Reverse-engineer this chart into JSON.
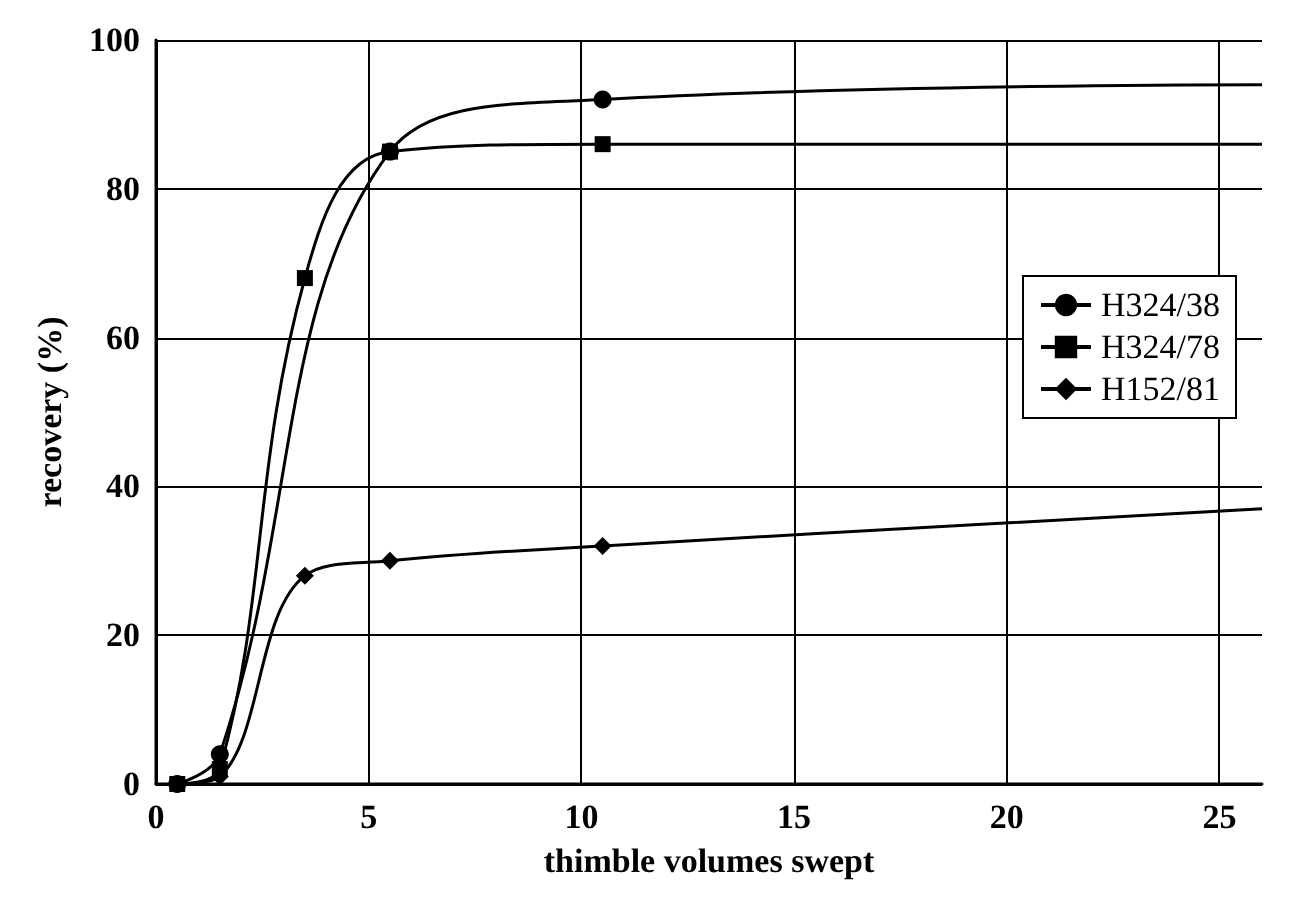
{
  "chart_data": {
    "type": "line",
    "xlabel": "thimble volumes swept",
    "ylabel": "recovery (%)",
    "xlim": [
      0,
      26
    ],
    "xticks": [
      0,
      5,
      10,
      15,
      20,
      25
    ],
    "ylim": [
      0,
      100
    ],
    "yticks": [
      0,
      20,
      40,
      60,
      80,
      100
    ],
    "grid": true,
    "legend": "right",
    "line_style": "solid",
    "series": [
      {
        "name": "H324/38",
        "color": "#000000",
        "marker": "circle",
        "x": [
          0.5,
          1.5,
          5.5,
          10.5,
          26
        ],
        "values": [
          0,
          4,
          85,
          92,
          94
        ]
      },
      {
        "name": "H324/78",
        "color": "#000000",
        "marker": "square",
        "x": [
          0.5,
          1.5,
          3.5,
          5.5,
          10.5,
          26
        ],
        "values": [
          0,
          2,
          68,
          85,
          86,
          86
        ]
      },
      {
        "name": "H152/81",
        "color": "#000000",
        "marker": "diamond",
        "x": [
          0.5,
          1.5,
          3.5,
          5.5,
          10.5,
          26
        ],
        "values": [
          0,
          1,
          28,
          30,
          32,
          37
        ]
      }
    ]
  }
}
